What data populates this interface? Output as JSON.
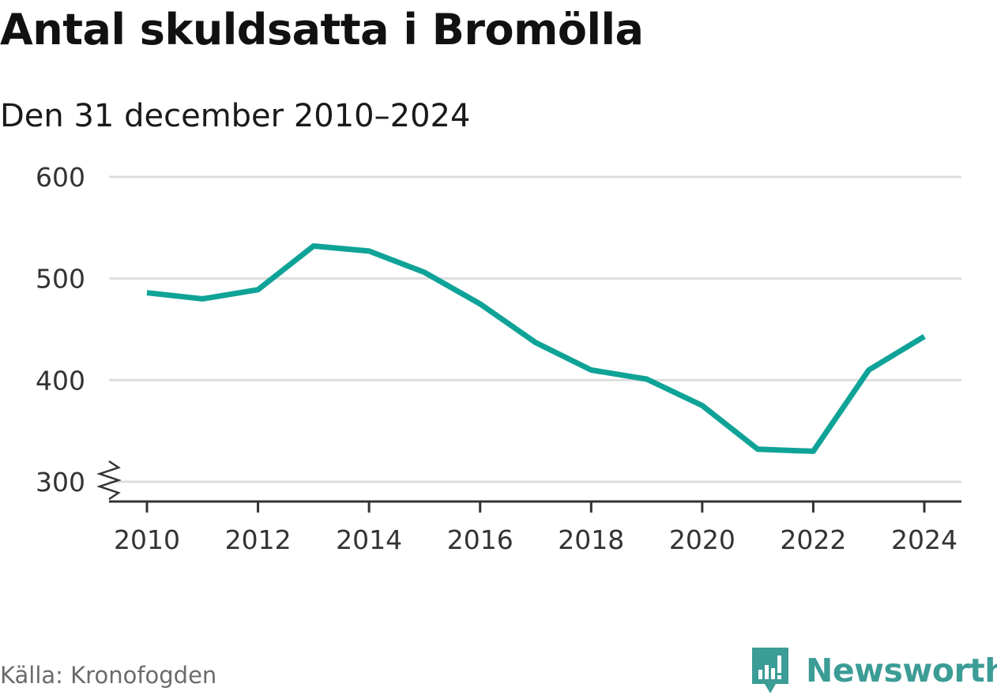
{
  "chart_data": {
    "type": "line",
    "title": "Antal skuldsatta i Bromölla",
    "subtitle": "Den 31 december 2010–2024",
    "x": [
      2010,
      2011,
      2012,
      2013,
      2014,
      2015,
      2016,
      2017,
      2018,
      2019,
      2020,
      2021,
      2022,
      2023,
      2024
    ],
    "values": [
      486,
      480,
      489,
      532,
      527,
      506,
      475,
      437,
      410,
      401,
      375,
      332,
      330,
      410,
      443
    ],
    "xticks": [
      2010,
      2012,
      2014,
      2016,
      2018,
      2020,
      2022,
      2024
    ],
    "yticks": [
      300,
      400,
      500,
      600
    ],
    "ylim": [
      300,
      600
    ],
    "xlim": [
      2010,
      2024
    ],
    "xlabel": "",
    "ylabel": "",
    "grid": true,
    "axis_break": true,
    "line_color": "#0fa398",
    "grid_color": "#dddddd"
  },
  "source": "Källa: Kronofogden",
  "brand": {
    "name": "Newsworthy",
    "color": "#3c9c96",
    "icon": "newsworthy-logo-icon"
  }
}
